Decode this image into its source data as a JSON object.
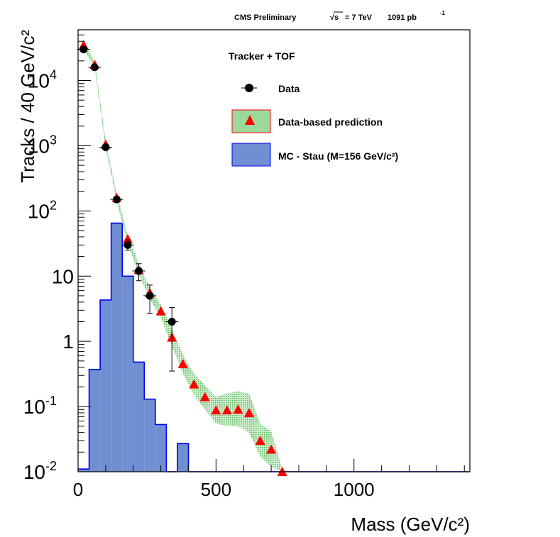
{
  "header": {
    "experiment": "CMS Preliminary",
    "sqrt_s_symbol": "√s",
    "energy": "= 7 TeV",
    "luminosity": "1091 pb",
    "luminosity_exp": "-1"
  },
  "chart_data": {
    "type": "histogram",
    "title": "CMS Preliminary √s = 7 TeV 1091 pb-1",
    "xlabel": "Mass (GeV/c²)",
    "ylabel": "Tracks / 40 GeV/c²",
    "xlim": [
      0,
      1420
    ],
    "ylim": [
      0.01,
      60000
    ],
    "yscale": "log",
    "x_ticks": [
      {
        "value": 0,
        "label": "0"
      },
      {
        "value": 500,
        "label": "500"
      },
      {
        "value": 1000,
        "label": "1000"
      }
    ],
    "y_ticks": [
      {
        "value": 0.01,
        "base": "10",
        "exp": "-2"
      },
      {
        "value": 0.1,
        "base": "10",
        "exp": "-1"
      },
      {
        "value": 1,
        "base": "1",
        "exp": ""
      },
      {
        "value": 10,
        "base": "10",
        "exp": ""
      },
      {
        "value": 100,
        "base": "10",
        "exp": "2"
      },
      {
        "value": 1000,
        "base": "10",
        "exp": "3"
      },
      {
        "value": 10000,
        "base": "10",
        "exp": "4"
      }
    ],
    "legend_title": "Tracker + TOF",
    "legend": [
      {
        "key": "data",
        "label": "Data"
      },
      {
        "key": "prediction",
        "label": "Data-based prediction"
      },
      {
        "key": "mc",
        "label": "MC - Stau (M=156 GeV/c²)"
      }
    ],
    "series": [
      {
        "name": "Data",
        "style": "points",
        "color": "#000000",
        "points": [
          {
            "x": 20,
            "y": 30000,
            "lo": 29000,
            "hi": 31000
          },
          {
            "x": 60,
            "y": 16000,
            "lo": 15200,
            "hi": 16800
          },
          {
            "x": 100,
            "y": 950,
            "lo": 880,
            "hi": 1020
          },
          {
            "x": 140,
            "y": 150,
            "lo": 135,
            "hi": 165
          },
          {
            "x": 180,
            "y": 30,
            "lo": 25,
            "hi": 36
          },
          {
            "x": 220,
            "y": 12,
            "lo": 8.5,
            "hi": 15.5
          },
          {
            "x": 260,
            "y": 5,
            "lo": 2.7,
            "hi": 7.3
          },
          {
            "x": 340,
            "y": 2,
            "lo": 0.35,
            "hi": 3.3
          }
        ]
      },
      {
        "name": "Data-based prediction",
        "style": "triangles",
        "color": "#ff0000",
        "band_color": "#9bd89b",
        "points": [
          {
            "x": 20,
            "y": 35000,
            "lo": 31000,
            "hi": 40000
          },
          {
            "x": 60,
            "y": 17500,
            "lo": 15500,
            "hi": 19500
          },
          {
            "x": 100,
            "y": 1050,
            "lo": 920,
            "hi": 1200
          },
          {
            "x": 140,
            "y": 160,
            "lo": 140,
            "hi": 182
          },
          {
            "x": 180,
            "y": 37,
            "lo": 32,
            "hi": 43
          },
          {
            "x": 220,
            "y": 12.5,
            "lo": 10.5,
            "hi": 15
          },
          {
            "x": 260,
            "y": 5.5,
            "lo": 4.5,
            "hi": 6.7
          },
          {
            "x": 300,
            "y": 2.9,
            "lo": 2.3,
            "hi": 3.6
          },
          {
            "x": 340,
            "y": 1.15,
            "lo": 0.85,
            "hi": 1.55
          },
          {
            "x": 380,
            "y": 0.45,
            "lo": 0.32,
            "hi": 0.62
          },
          {
            "x": 420,
            "y": 0.22,
            "lo": 0.15,
            "hi": 0.32
          },
          {
            "x": 460,
            "y": 0.14,
            "lo": 0.09,
            "hi": 0.21
          },
          {
            "x": 500,
            "y": 0.088,
            "lo": 0.055,
            "hi": 0.14
          },
          {
            "x": 540,
            "y": 0.088,
            "lo": 0.05,
            "hi": 0.16
          },
          {
            "x": 580,
            "y": 0.09,
            "lo": 0.05,
            "hi": 0.17
          },
          {
            "x": 620,
            "y": 0.08,
            "lo": 0.04,
            "hi": 0.16
          },
          {
            "x": 660,
            "y": 0.03,
            "lo": 0.017,
            "hi": 0.055
          },
          {
            "x": 700,
            "y": 0.022,
            "lo": 0.012,
            "hi": 0.042
          },
          {
            "x": 740,
            "y": 0.0098,
            "lo": 0.0095,
            "hi": 0.011
          }
        ]
      },
      {
        "name": "MC - Stau (M=156 GeV/c²)",
        "style": "hist",
        "color": "#6f8fd2",
        "edge_color": "#0000ee",
        "bin_width": 40,
        "bins": [
          {
            "x0": 0,
            "y": 0.011
          },
          {
            "x0": 40,
            "y": 0.37
          },
          {
            "x0": 80,
            "y": 4.3
          },
          {
            "x0": 120,
            "y": 65
          },
          {
            "x0": 160,
            "y": 10
          },
          {
            "x0": 200,
            "y": 0.48
          },
          {
            "x0": 240,
            "y": 0.13
          },
          {
            "x0": 280,
            "y": 0.053
          },
          {
            "x0": 320,
            "y": 0.01
          },
          {
            "x0": 360,
            "y": 0.027
          },
          {
            "x0": 400,
            "y": 0.01
          }
        ]
      }
    ]
  }
}
